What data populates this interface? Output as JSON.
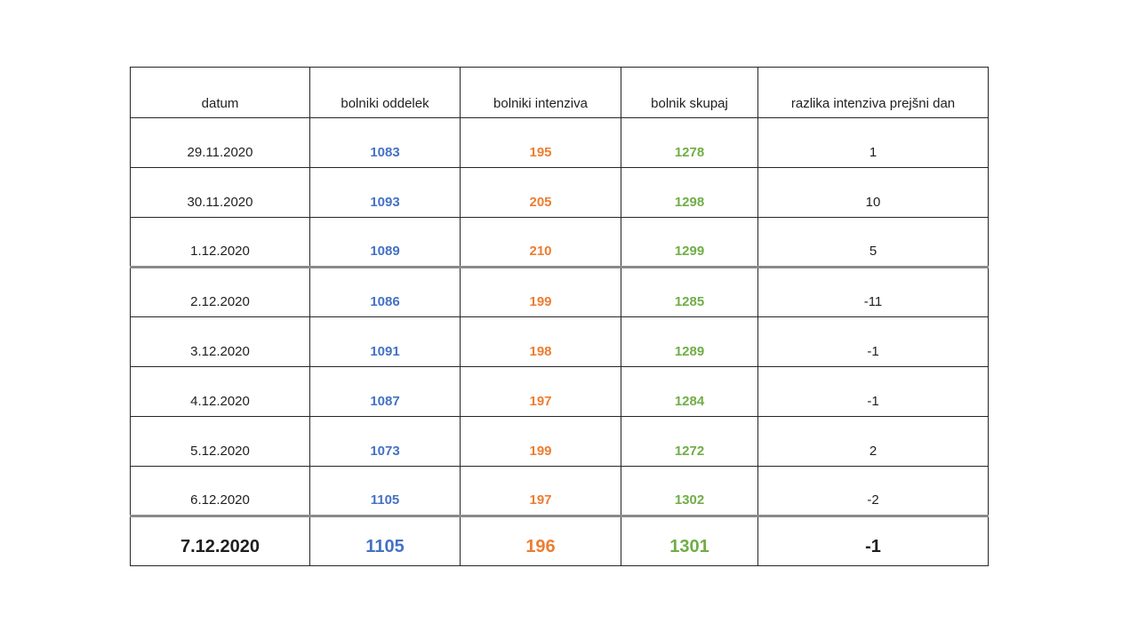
{
  "chart_data": {
    "type": "table",
    "columns": [
      "datum",
      "bolniki oddelek",
      "bolniki intenziva",
      "bolnik skupaj",
      "razlika intenziva prejšni dan"
    ],
    "rows": [
      [
        "29.11.2020",
        1083,
        195,
        1278,
        1
      ],
      [
        "30.11.2020",
        1093,
        205,
        1298,
        10
      ],
      [
        "1.12.2020",
        1089,
        210,
        1299,
        5
      ],
      [
        "2.12.2020",
        1086,
        199,
        1285,
        -11
      ],
      [
        "3.12.2020",
        1091,
        198,
        1289,
        -1
      ],
      [
        "4.12.2020",
        1087,
        197,
        1284,
        -1
      ],
      [
        "5.12.2020",
        1073,
        199,
        1272,
        2
      ],
      [
        "6.12.2020",
        1105,
        197,
        1302,
        -2
      ],
      [
        "7.12.2020",
        1105,
        196,
        1301,
        -1
      ]
    ],
    "title": "",
    "legend": "none",
    "grid": "all-cell-borders"
  },
  "table": {
    "column_keys": [
      "datum",
      "oddelek",
      "intenziva",
      "skupaj",
      "razlika"
    ],
    "column_text_colors": [
      null,
      "#4472C4",
      "#ED7D31",
      "#70AD47",
      null
    ],
    "thick_separator_after_data_rows": [
      3,
      8
    ],
    "final_data_row": 9,
    "colors": {
      "header_text": "#1f1f1f",
      "date_text": "#1f1f1f",
      "oddelek_blue": "#4472C4",
      "intenziva_orange": "#ED7D31",
      "skupaj_green": "#70AD47",
      "grid_line": "#262626",
      "thick_line": "#8a8a8a",
      "background": "#ffffff"
    }
  }
}
